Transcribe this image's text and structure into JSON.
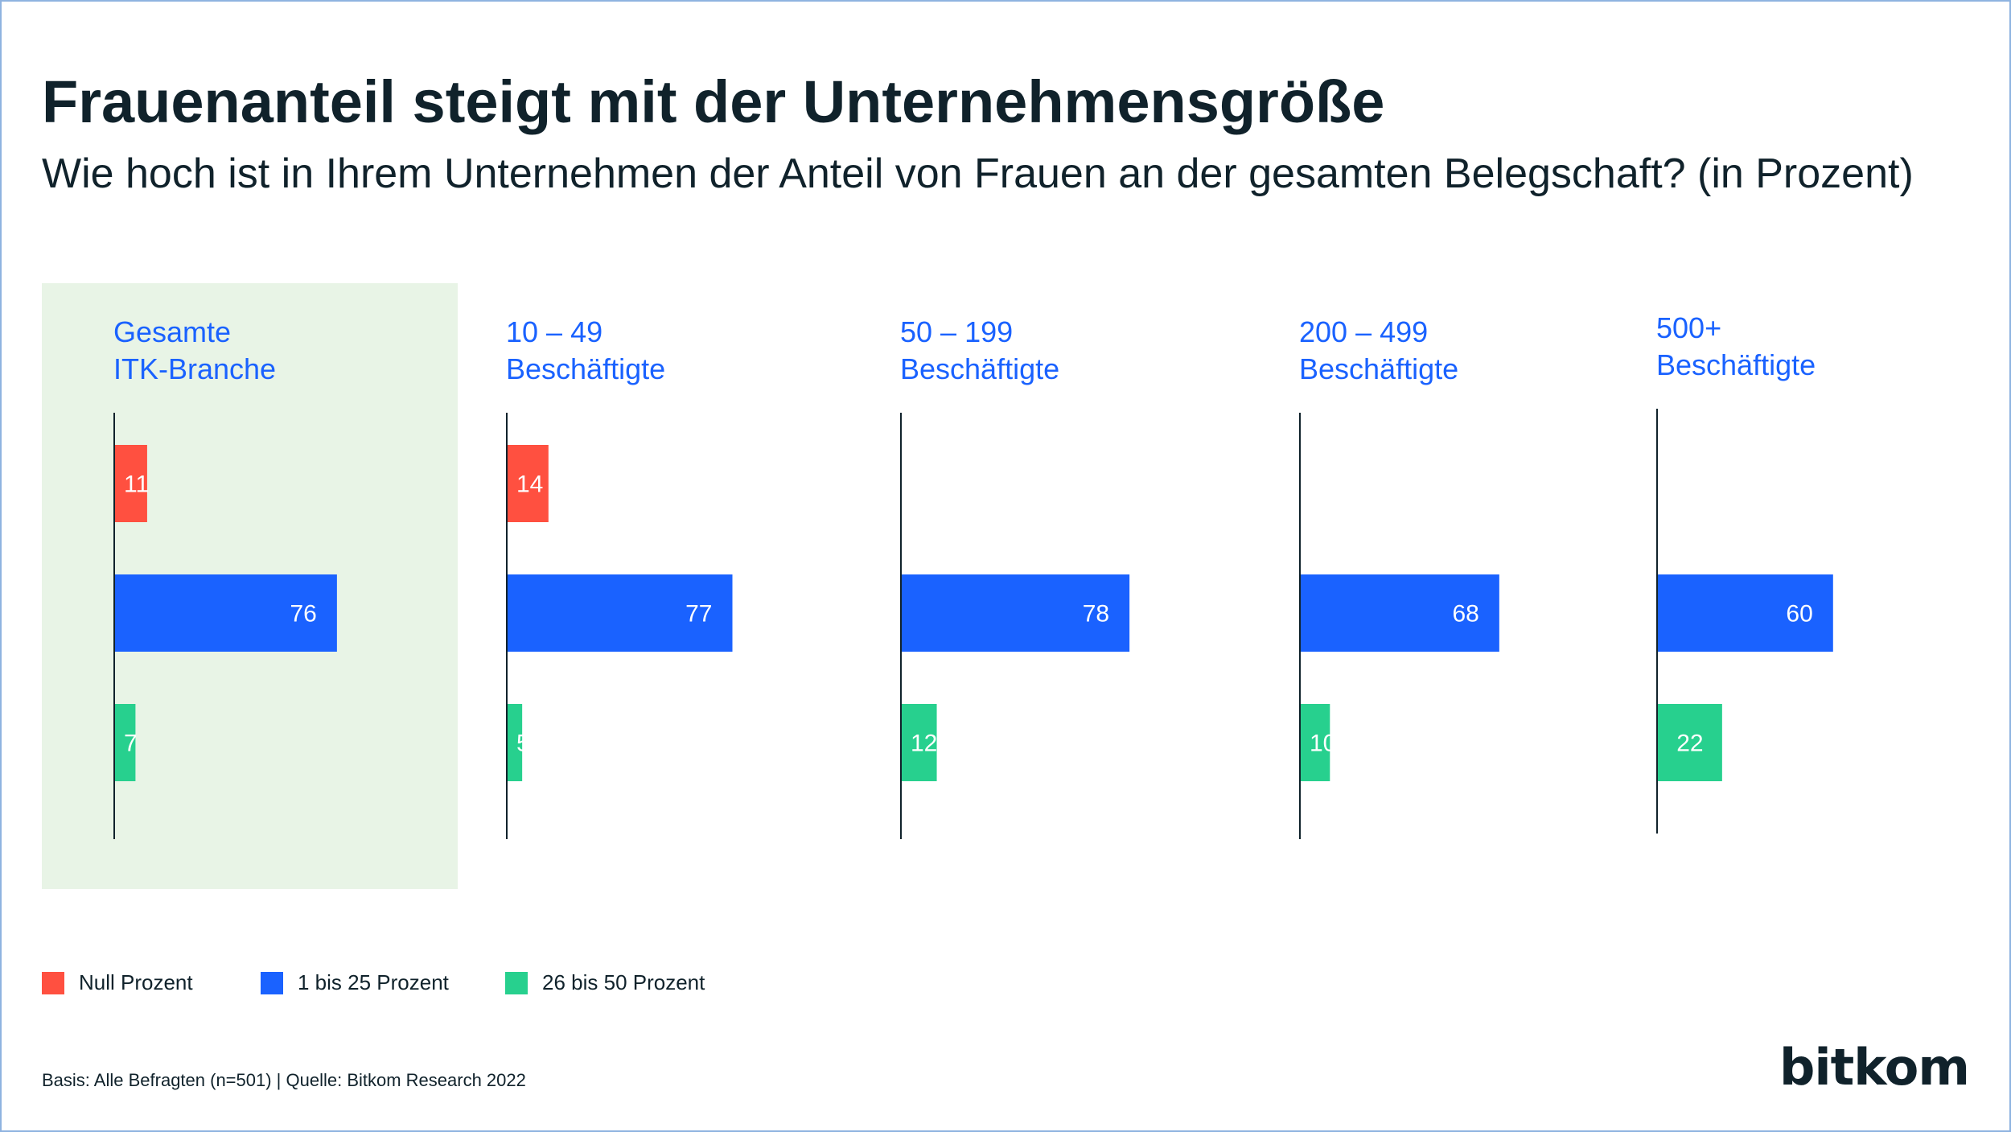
{
  "title": "Frauenanteil steigt mit der Unternehmensgröße",
  "subtitle": "Wie hoch ist in Ihrem Unternehmen der Anteil von Frauen an der gesamten Belegschaft? (in Prozent)",
  "colors": {
    "null": "#ff5040",
    "one_to_25": "#1a62ff",
    "twentysix_to_50": "#27d08e",
    "highlight_bg": "#e8f4e6",
    "text": "#10222b",
    "group_label": "#1a62ff"
  },
  "chart_data": {
    "type": "bar",
    "orientation": "horizontal",
    "categories": [
      "Gesamte ITK-Branche",
      "10 – 49 Beschäftigte",
      "50 – 199 Beschäftigte",
      "200 – 499 Beschäftigte",
      "500+ Beschäftigte"
    ],
    "category_lines": [
      [
        "Gesamte",
        "ITK-Branche"
      ],
      [
        "10 – 49",
        "Beschäftigte"
      ],
      [
        "50 – 199",
        "Beschäftigte"
      ],
      [
        "200 – 499",
        "Beschäftigte"
      ],
      [
        "500+",
        "Beschäftigte"
      ]
    ],
    "series": [
      {
        "name": "Null Prozent",
        "color": "#ff5040",
        "values": [
          11,
          14,
          null,
          null,
          null
        ]
      },
      {
        "name": "1 bis 25 Prozent",
        "color": "#1a62ff",
        "values": [
          76,
          77,
          78,
          68,
          60
        ]
      },
      {
        "name": "26 bis 50 Prozent",
        "color": "#27d08e",
        "values": [
          7,
          5,
          12,
          10,
          22
        ]
      }
    ],
    "unit": "Prozent",
    "highlighted_category": "Gesamte ITK-Branche",
    "legend_position": "bottom-left",
    "grid": false
  },
  "legend": {
    "items": [
      "Null Prozent",
      "1 bis 25 Prozent",
      "26 bis 50 Prozent"
    ]
  },
  "footnote": "Basis: Alle Befragten (n=501) | Quelle: Bitkom Research 2022",
  "logo_text": "bitkom"
}
